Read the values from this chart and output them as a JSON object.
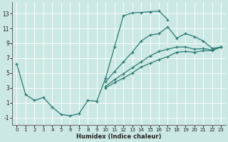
{
  "title": "",
  "xlabel": "Humidex (Indice chaleur)",
  "xlim": [
    -0.5,
    23.5
  ],
  "ylim": [
    -2,
    14.5
  ],
  "xticks": [
    0,
    1,
    2,
    3,
    4,
    5,
    6,
    7,
    8,
    9,
    10,
    11,
    12,
    13,
    14,
    15,
    16,
    17,
    18,
    19,
    20,
    21,
    22,
    23
  ],
  "yticks": [
    -1,
    1,
    3,
    5,
    7,
    9,
    11,
    13
  ],
  "background_color": "#cce8e5",
  "grid_color": "#aed4d0",
  "line_color": "#2a7a72",
  "lines": [
    {
      "x": [
        0,
        1,
        2,
        3,
        4,
        5,
        6,
        7,
        8,
        9,
        10,
        11,
        12,
        13,
        14,
        15,
        16,
        17
      ],
      "y": [
        6.2,
        2.1,
        1.3,
        1.7,
        0.4,
        -0.6,
        -0.75,
        -0.5,
        1.3,
        1.2,
        4.3,
        8.5,
        12.7,
        13.1,
        13.15,
        13.25,
        13.35,
        12.2
      ]
    },
    {
      "x": [
        10,
        11,
        12,
        13,
        14,
        15,
        16,
        17,
        18,
        19,
        20,
        21,
        22,
        23
      ],
      "y": [
        3.8,
        5.2,
        6.5,
        7.8,
        9.3,
        10.1,
        10.3,
        11.2,
        9.7,
        10.3,
        9.9,
        9.3,
        8.3,
        8.5
      ]
    },
    {
      "x": [
        10,
        11,
        12,
        13,
        14,
        15,
        16,
        17,
        18,
        19,
        20,
        21,
        22,
        23
      ],
      "y": [
        3.2,
        4.1,
        4.9,
        5.7,
        6.5,
        7.3,
        7.9,
        8.2,
        8.5,
        8.5,
        8.2,
        8.3,
        8.1,
        8.5
      ]
    },
    {
      "x": [
        10,
        11,
        12,
        13,
        14,
        15,
        16,
        17,
        18,
        19,
        20,
        21,
        22,
        23
      ],
      "y": [
        3.0,
        3.7,
        4.3,
        5.0,
        5.8,
        6.3,
        6.8,
        7.2,
        7.8,
        7.9,
        7.8,
        8.0,
        8.0,
        8.5
      ]
    }
  ]
}
